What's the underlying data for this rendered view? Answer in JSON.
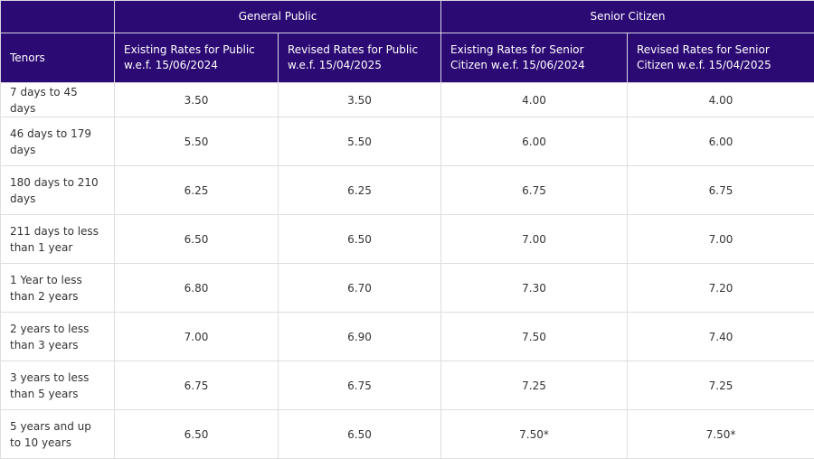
{
  "header": {
    "group_blank": "",
    "group_general_public": "General Public",
    "group_senior_citizen": "Senior Citizen",
    "tenors": "Tenors",
    "existing_public": "Existing Rates for Public w.e.f. 15/06/2024",
    "revised_public": "Revised Rates for Public w.e.f. 15/04/2025",
    "existing_senior": "Existing Rates for Senior Citizen w.e.f. 15/06/2024",
    "revised_senior": "Revised Rates for Senior Citizen w.e.f. 15/04/2025"
  },
  "rows": [
    {
      "tenor": "7 days to 45 days",
      "existing_public": "3.50",
      "revised_public": "3.50",
      "existing_senior": "4.00",
      "revised_senior": "4.00"
    },
    {
      "tenor": "46 days to 179 days",
      "existing_public": "5.50",
      "revised_public": "5.50",
      "existing_senior": "6.00",
      "revised_senior": "6.00"
    },
    {
      "tenor": "180 days to 210 days",
      "existing_public": "6.25",
      "revised_public": "6.25",
      "existing_senior": "6.75",
      "revised_senior": "6.75"
    },
    {
      "tenor": "211 days to less than 1 year",
      "existing_public": "6.50",
      "revised_public": "6.50",
      "existing_senior": "7.00",
      "revised_senior": "7.00"
    },
    {
      "tenor": "1 Year to less than 2 years",
      "existing_public": "6.80",
      "revised_public": "6.70",
      "existing_senior": "7.30",
      "revised_senior": "7.20"
    },
    {
      "tenor": "2 years to less than 3 years",
      "existing_public": "7.00",
      "revised_public": "6.90",
      "existing_senior": "7.50",
      "revised_senior": "7.40"
    },
    {
      "tenor": "3 years to less than 5 years",
      "existing_public": "6.75",
      "revised_public": "6.75",
      "existing_senior": "7.25",
      "revised_senior": "7.25"
    },
    {
      "tenor": "5 years and up to 10 years",
      "existing_public": "6.50",
      "revised_public": "6.50",
      "existing_senior": "7.50*",
      "revised_senior": "7.50*"
    }
  ],
  "colors": {
    "header_bg": "#2c0a73",
    "header_text": "#ffffff",
    "cell_text": "#333333",
    "border": "#dedede"
  }
}
